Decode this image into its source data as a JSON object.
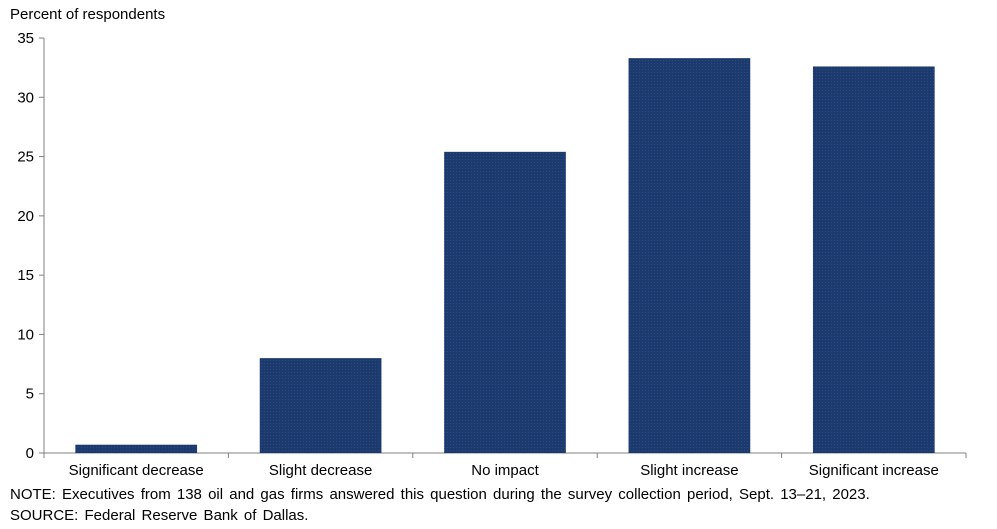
{
  "chart_data": {
    "type": "bar",
    "ylabel": "Percent of respondents",
    "categories": [
      "Significant decrease",
      "Slight decrease",
      "No impact",
      "Slight increase",
      "Significant increase"
    ],
    "values": [
      0.7,
      8.0,
      25.4,
      33.3,
      32.6
    ],
    "ylim": [
      0,
      35
    ],
    "yticks": [
      0,
      5,
      10,
      15,
      20,
      25,
      30,
      35
    ],
    "grid": false,
    "legend": "none",
    "bar_color": "#1c3a6e"
  },
  "notes": {
    "note": "NOTE: Executives from 138 oil and gas firms answered this question during the survey collection period, Sept. 13–21, 2023.",
    "source": "SOURCE: Federal Reserve Bank of Dallas."
  }
}
